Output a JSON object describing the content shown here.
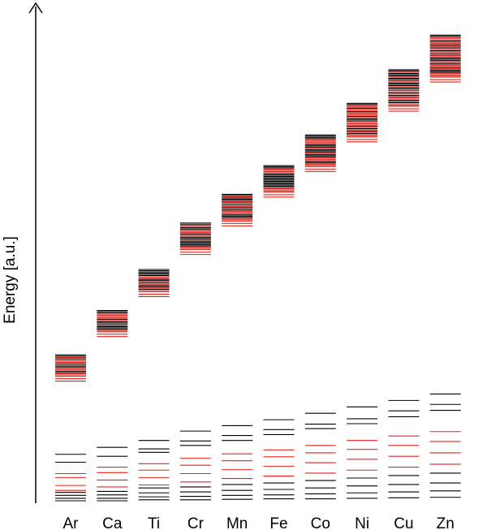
{
  "chart_data": {
    "type": "energy-level-diagram",
    "ylabel": "Energy [a.u.]",
    "categories": [
      "Ar",
      "Ca",
      "Ti",
      "Cr",
      "Mn",
      "Fe",
      "Co",
      "Ni",
      "Cu",
      "Zn"
    ],
    "y_axis": {
      "ticks": false,
      "arrow": true,
      "range": [
        0,
        1
      ]
    },
    "colors": {
      "black_levels": "#000000",
      "red_levels": "#e8221a",
      "axis": "#000000"
    },
    "upper_bands": [
      {
        "element": "Ar",
        "top": 0.295,
        "bottom": 0.252
      },
      {
        "element": "Ca",
        "top": 0.385,
        "bottom": 0.342
      },
      {
        "element": "Ti",
        "top": 0.468,
        "bottom": 0.423
      },
      {
        "element": "Cr",
        "top": 0.562,
        "bottom": 0.508
      },
      {
        "element": "Mn",
        "top": 0.62,
        "bottom": 0.566
      },
      {
        "element": "Fe",
        "top": 0.678,
        "bottom": 0.624
      },
      {
        "element": "Co",
        "top": 0.74,
        "bottom": 0.676
      },
      {
        "element": "Ni",
        "top": 0.804,
        "bottom": 0.736
      },
      {
        "element": "Cu",
        "top": 0.872,
        "bottom": 0.798
      },
      {
        "element": "Zn",
        "top": 0.942,
        "bottom": 0.857
      }
    ],
    "lower_levels": [
      {
        "element": "Ar",
        "black": [
          0.094,
          0.078,
          0.017,
          0.011,
          0.005,
          0.0
        ],
        "red": [
          0.055,
          0.047,
          0.031,
          0.021
        ]
      },
      {
        "element": "Ca",
        "black": [
          0.108,
          0.09,
          0.019,
          0.012,
          0.005,
          0.0
        ],
        "red": [
          0.068,
          0.057,
          0.042,
          0.028
        ]
      },
      {
        "element": "Ti",
        "black": [
          0.122,
          0.105,
          0.098,
          0.026,
          0.016,
          0.008,
          0.002
        ],
        "red": [
          0.075,
          0.062,
          0.047,
          0.032
        ]
      },
      {
        "element": "Cr",
        "black": [
          0.141,
          0.121,
          0.112,
          0.028,
          0.018,
          0.009,
          0.002
        ],
        "red": [
          0.086,
          0.072,
          0.055,
          0.038
        ]
      },
      {
        "element": "Mn",
        "black": [
          0.152,
          0.132,
          0.122,
          0.033,
          0.021,
          0.011,
          0.003
        ],
        "red": [
          0.095,
          0.081,
          0.063,
          0.045
        ]
      },
      {
        "element": "Fe",
        "black": [
          0.164,
          0.144,
          0.134,
          0.036,
          0.023,
          0.012,
          0.004
        ],
        "red": [
          0.103,
          0.089,
          0.07,
          0.05
        ]
      },
      {
        "element": "Co",
        "black": [
          0.177,
          0.155,
          0.146,
          0.041,
          0.026,
          0.014,
          0.004
        ],
        "red": [
          0.112,
          0.097,
          0.077,
          0.056
        ]
      },
      {
        "element": "Ni",
        "black": [
          0.19,
          0.166,
          0.156,
          0.046,
          0.03,
          0.016,
          0.005
        ],
        "red": [
          0.122,
          0.104,
          0.084,
          0.062
        ]
      },
      {
        "element": "Cu",
        "black": [
          0.203,
          0.182,
          0.17,
          0.051,
          0.033,
          0.018,
          0.006
        ],
        "red": [
          0.131,
          0.112,
          0.09,
          0.068
        ]
      },
      {
        "element": "Zn",
        "black": [
          0.216,
          0.195,
          0.183,
          0.056,
          0.036,
          0.02,
          0.007
        ],
        "red": [
          0.14,
          0.12,
          0.097,
          0.074
        ]
      }
    ]
  }
}
